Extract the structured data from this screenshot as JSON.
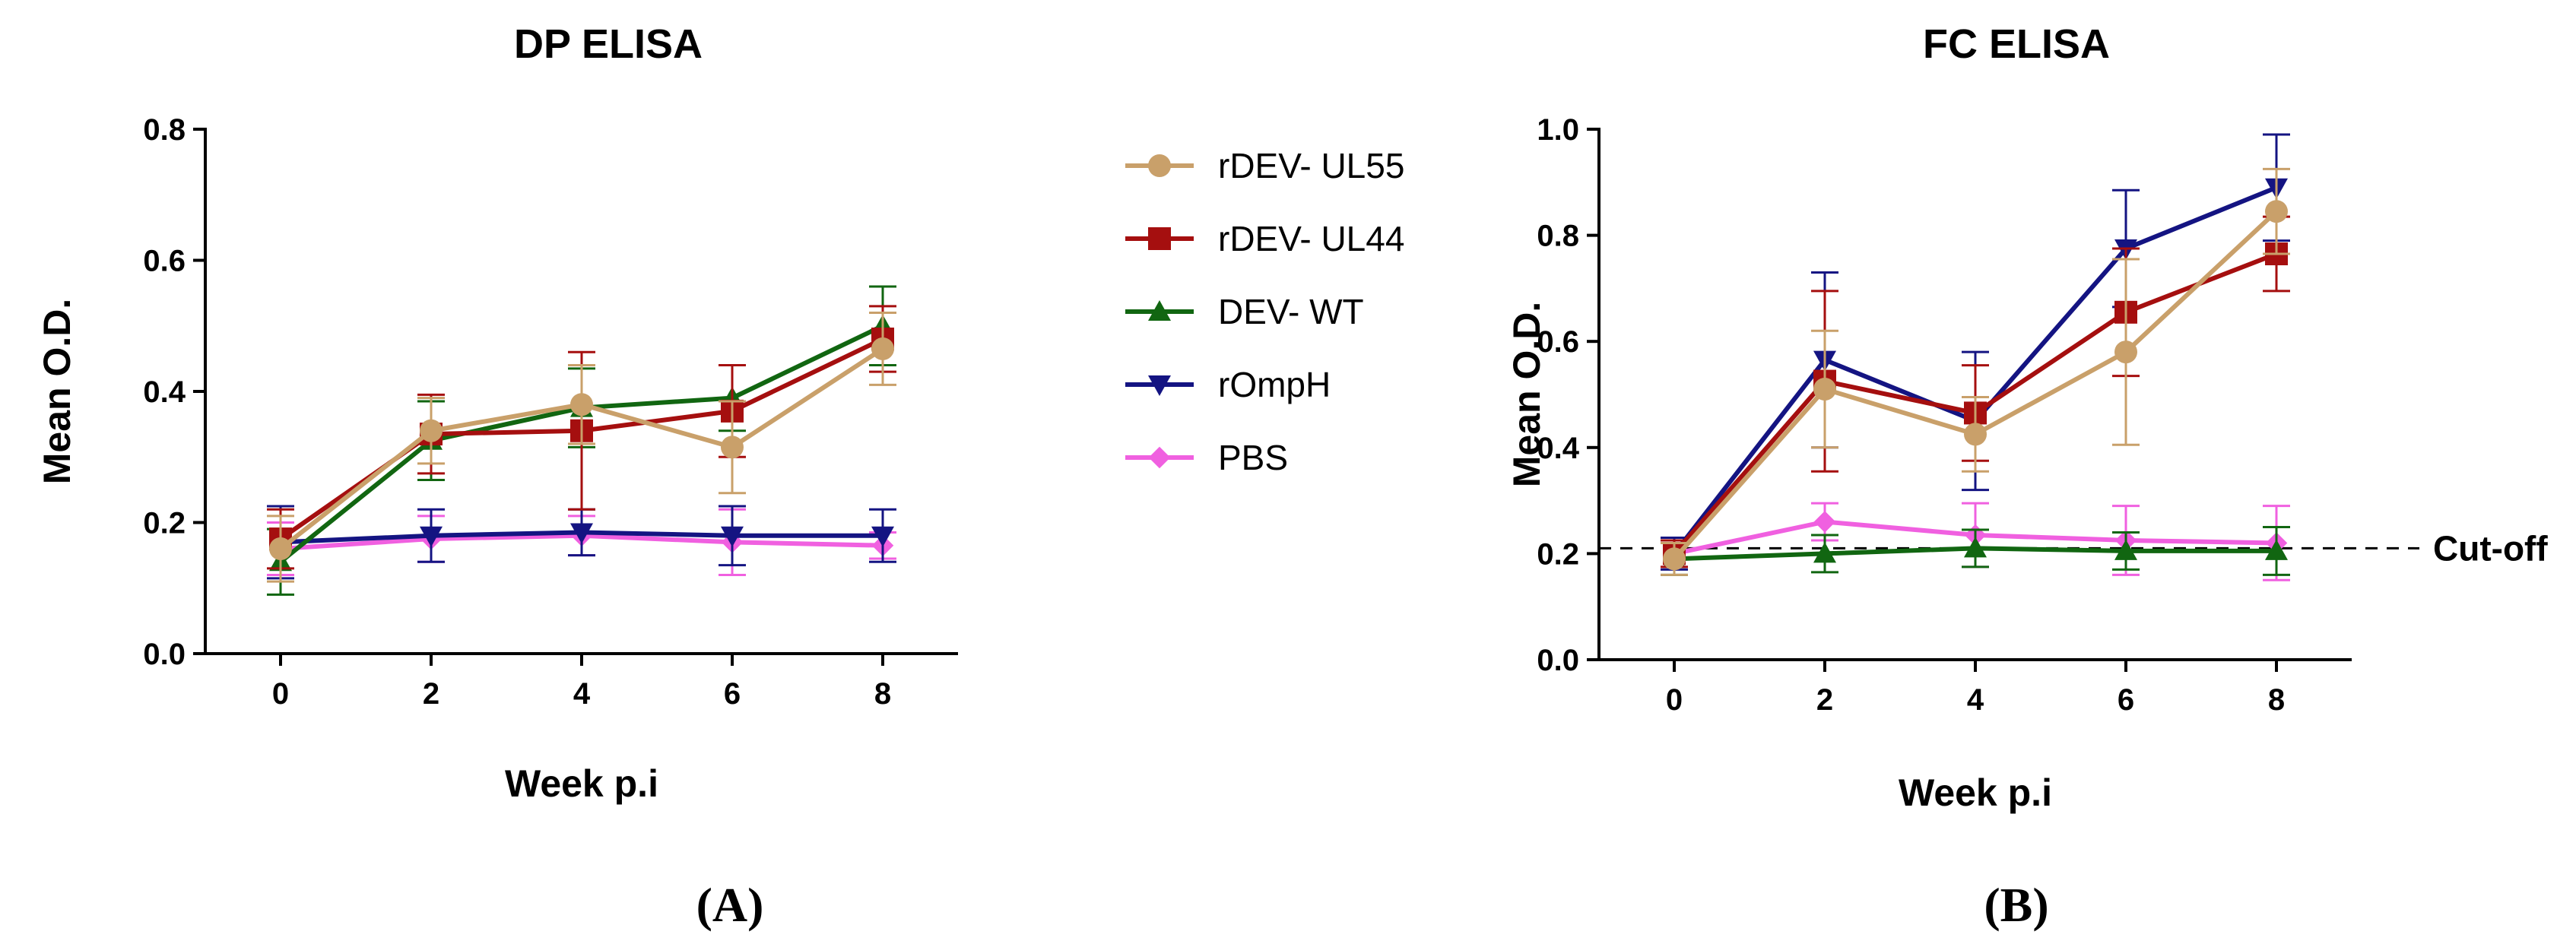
{
  "series_styles": [
    {
      "key": "rDEV- UL55",
      "color": "#C9A06A",
      "marker": "circle"
    },
    {
      "key": "rDEV- UL44",
      "color": "#A50F0F",
      "marker": "square"
    },
    {
      "key": "DEV- WT",
      "color": "#116611",
      "marker": "triangle-up"
    },
    {
      "key": "rOmpH",
      "color": "#141482",
      "marker": "triangle-down"
    },
    {
      "key": "PBS",
      "color": "#F060E0",
      "marker": "diamond"
    }
  ],
  "legend": {
    "items": [
      "rDEV- UL55",
      "rDEV- UL44",
      "DEV- WT",
      "rOmpH",
      "PBS"
    ]
  },
  "chart_data": [
    {
      "type": "line",
      "title": "DP ELISA",
      "panel_label": "(A)",
      "xlabel": "Week p.i",
      "ylabel": "Mean O.D.",
      "x": [
        0,
        2,
        4,
        6,
        8
      ],
      "xticks": [
        "0",
        "2",
        "4",
        "6",
        "8"
      ],
      "ylim": [
        0,
        0.8
      ],
      "yticks": [
        "0.0",
        "0.2",
        "0.4",
        "0.6",
        "0.8"
      ],
      "series": [
        {
          "name": "rDEV- UL55",
          "values": [
            0.16,
            0.34,
            0.38,
            0.315,
            0.465
          ],
          "errors": [
            0.05,
            0.05,
            0.06,
            0.07,
            0.055
          ]
        },
        {
          "name": "rDEV- UL44",
          "values": [
            0.175,
            0.335,
            0.34,
            0.37,
            0.48
          ],
          "errors": [
            0.045,
            0.06,
            0.12,
            0.07,
            0.05
          ]
        },
        {
          "name": "DEV- WT",
          "values": [
            0.14,
            0.325,
            0.375,
            0.39,
            0.5
          ],
          "errors": [
            0.05,
            0.06,
            0.06,
            0.05,
            0.06
          ]
        },
        {
          "name": "rOmpH",
          "values": [
            0.17,
            0.18,
            0.185,
            0.18,
            0.18
          ],
          "errors": [
            0.055,
            0.04,
            0.035,
            0.045,
            0.04
          ]
        },
        {
          "name": "PBS",
          "values": [
            0.16,
            0.175,
            0.18,
            0.17,
            0.165
          ],
          "errors": [
            0.04,
            0.035,
            0.03,
            0.05,
            0.02
          ]
        }
      ]
    },
    {
      "type": "line",
      "title": "FC ELISA",
      "panel_label": "(B)",
      "xlabel": "Week p.i",
      "ylabel": "Mean O.D.",
      "x": [
        0,
        2,
        4,
        6,
        8
      ],
      "xticks": [
        "0",
        "2",
        "4",
        "6",
        "8"
      ],
      "ylim": [
        0,
        1.0
      ],
      "yticks": [
        "0.0",
        "0.2",
        "0.4",
        "0.6",
        "0.8",
        "1.0"
      ],
      "cutoff": {
        "value": 0.21,
        "label": "Cut-off"
      },
      "series": [
        {
          "name": "rDEV- UL55",
          "values": [
            0.19,
            0.51,
            0.425,
            0.58,
            0.845
          ],
          "errors": [
            0.03,
            0.11,
            0.07,
            0.175,
            0.08
          ]
        },
        {
          "name": "rDEV- UL44",
          "values": [
            0.2,
            0.525,
            0.465,
            0.655,
            0.765
          ],
          "errors": [
            0.025,
            0.17,
            0.09,
            0.12,
            0.07
          ]
        },
        {
          "name": "DEV- WT",
          "values": [
            0.19,
            0.2,
            0.21,
            0.205,
            0.205
          ],
          "errors": [
            0.03,
            0.035,
            0.035,
            0.035,
            0.045
          ]
        },
        {
          "name": "rOmpH",
          "values": [
            0.2,
            0.565,
            0.45,
            0.775,
            0.89
          ],
          "errors": [
            0.03,
            0.165,
            0.13,
            0.11,
            0.1
          ]
        },
        {
          "name": "PBS",
          "values": [
            0.2,
            0.26,
            0.235,
            0.225,
            0.22
          ],
          "errors": [
            0.025,
            0.035,
            0.06,
            0.065,
            0.07
          ]
        }
      ]
    }
  ]
}
